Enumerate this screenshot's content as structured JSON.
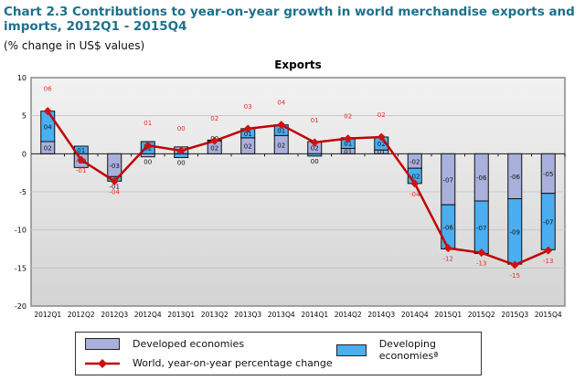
{
  "title": "Chart 2.3 Contributions to year-on-year growth in world merchandise exports and imports, 2012Q1 - 2015Q4",
  "subtitle": "(% change in US$ values)",
  "colors": {
    "developed": "#a9b0dc",
    "developing": "#4aaef0",
    "world": "#c00000",
    "label": "#e0302a"
  },
  "chart_data": {
    "type": "bar",
    "stacked": true,
    "title": "Exports",
    "ylim": [
      -20,
      10
    ],
    "yticks": [
      10,
      5,
      0,
      -5,
      -10,
      -15,
      -20
    ],
    "grid": true,
    "legend_placement": "bottom",
    "categories": [
      "2012Q1",
      "2012Q2",
      "2012Q3",
      "2012Q4",
      "2013Q1",
      "2013Q2",
      "2013Q3",
      "2013Q4",
      "2014Q1",
      "2014Q2",
      "2014Q3",
      "2014Q4",
      "2015Q1",
      "2015Q2",
      "2015Q3",
      "2015Q4"
    ],
    "series": [
      {
        "name": "Developed economies",
        "kind": "bar",
        "values": [
          1.6,
          -1.8,
          -3.0,
          -0.4,
          0.9,
          1.7,
          2.1,
          2.4,
          1.6,
          0.7,
          0.5,
          -1.9,
          -6.7,
          -6.2,
          -5.9,
          -5.2
        ],
        "labels": [
          "02",
          "-02",
          "-03",
          "00",
          "01",
          "02",
          "02",
          "02",
          "02",
          "01",
          "01",
          "-02",
          "-07",
          "-06",
          "-06",
          "-05"
        ]
      },
      {
        "name": "Developing economiesª",
        "kind": "bar",
        "values": [
          4.0,
          1.0,
          -0.6,
          1.6,
          -0.5,
          0.1,
          1.2,
          1.4,
          -0.3,
          1.4,
          1.7,
          -2.0,
          -5.8,
          -6.9,
          -8.6,
          -7.4
        ],
        "labels": [
          "04",
          "01",
          "-01",
          "02",
          "00",
          "00",
          "01",
          "01",
          "00",
          "01",
          "02",
          "-02",
          "-06",
          "-07",
          "-09",
          "-07"
        ]
      },
      {
        "name": "World, year-on-year percentage change",
        "kind": "line",
        "values": [
          5.6,
          -0.8,
          -3.6,
          1.1,
          0.4,
          1.7,
          3.3,
          3.8,
          1.5,
          2.0,
          2.2,
          -3.9,
          -12.4,
          -13.0,
          -14.6,
          -12.7
        ],
        "labels": [
          "06",
          "-01",
          "-04",
          "01",
          "00",
          "02",
          "03",
          "04",
          "01",
          "02",
          "02",
          "-04",
          "-12",
          "-13",
          "-15",
          "-13"
        ]
      }
    ]
  }
}
